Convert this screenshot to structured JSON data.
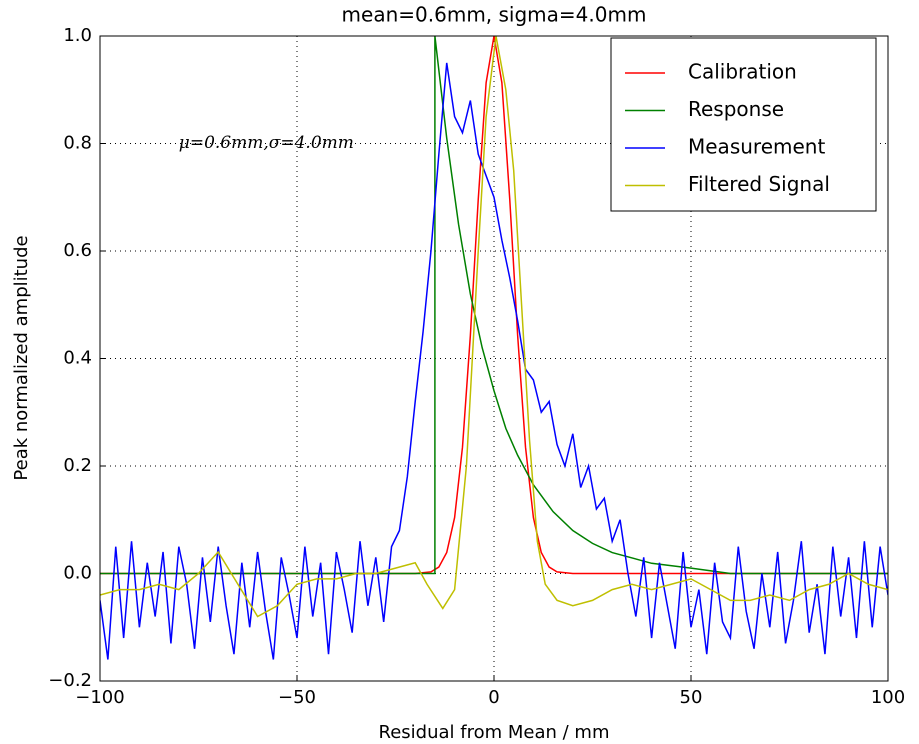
{
  "chart_data": {
    "type": "line",
    "title": "mean=0.6mm, sigma=4.0mm",
    "x_label": "Residual from Mean / mm",
    "y_label": "Peak normalized amplitude",
    "annotation": {
      "text": "μ=0.6mm,σ=4.0mm",
      "x": -80,
      "y": 0.8
    },
    "xlim": [
      -100,
      100
    ],
    "ylim": [
      -0.2,
      1.0
    ],
    "xticks": [
      {
        "value": -100,
        "label": "−100"
      },
      {
        "value": -50,
        "label": "−50"
      },
      0,
      50,
      100
    ],
    "yticks": [
      {
        "value": -0.2,
        "label": "−0.2"
      },
      {
        "value": 0,
        "label": "0.0"
      },
      0.2,
      0.4,
      0.6,
      0.8,
      {
        "value": 1,
        "label": "1.0"
      }
    ],
    "grid": true,
    "legend": "upper right",
    "series": [
      {
        "name": "Calibration",
        "color": "#ff0000",
        "x": [
          -100,
          -20,
          -16,
          -14,
          -12,
          -10,
          -8,
          -6,
          -4,
          -2,
          0,
          2,
          4,
          6,
          8,
          10,
          12,
          14,
          16,
          20,
          100
        ],
        "values": [
          0,
          0,
          0.003,
          0.012,
          0.039,
          0.104,
          0.235,
          0.443,
          0.696,
          0.913,
          1,
          0.913,
          0.696,
          0.443,
          0.235,
          0.104,
          0.039,
          0.012,
          0.003,
          0,
          0
        ]
      },
      {
        "name": "Response",
        "color": "#008000",
        "x": [
          -100,
          -15,
          -15,
          -12,
          -9,
          -6,
          -3,
          0,
          3,
          6,
          10,
          15,
          20,
          25,
          30,
          40,
          50,
          60,
          100
        ],
        "values": [
          0,
          0,
          1,
          0.81,
          0.65,
          0.52,
          0.42,
          0.34,
          0.27,
          0.22,
          0.165,
          0.115,
          0.08,
          0.056,
          0.039,
          0.019,
          0.01,
          0,
          0
        ]
      },
      {
        "name": "Measurement",
        "color": "#0000ff",
        "x": [
          -100,
          -98,
          -96,
          -94,
          -92,
          -90,
          -88,
          -86,
          -84,
          -82,
          -80,
          -78,
          -76,
          -74,
          -72,
          -70,
          -68,
          -66,
          -64,
          -62,
          -60,
          -58,
          -56,
          -54,
          -52,
          -50,
          -48,
          -46,
          -44,
          -42,
          -40,
          -38,
          -36,
          -34,
          -32,
          -30,
          -28,
          -26,
          -24,
          -22,
          -20,
          -18,
          -16,
          -14,
          -12,
          -10,
          -8,
          -6,
          -4,
          -2,
          0,
          2,
          4,
          6,
          8,
          10,
          12,
          14,
          16,
          18,
          20,
          22,
          24,
          26,
          28,
          30,
          32,
          34,
          36,
          38,
          40,
          42,
          44,
          46,
          48,
          50,
          52,
          54,
          56,
          58,
          60,
          62,
          64,
          66,
          68,
          70,
          72,
          74,
          76,
          78,
          80,
          82,
          84,
          86,
          88,
          90,
          92,
          94,
          96,
          98,
          100
        ],
        "values": [
          -0.05,
          -0.16,
          0.05,
          -0.12,
          0.06,
          -0.1,
          0.02,
          -0.08,
          0.04,
          -0.13,
          0.05,
          -0.02,
          -0.14,
          0.03,
          -0.09,
          0.05,
          -0.06,
          -0.15,
          0.02,
          -0.1,
          0.04,
          -0.07,
          -0.16,
          0.03,
          -0.04,
          -0.12,
          0.05,
          -0.08,
          0.02,
          -0.15,
          0.04,
          -0.03,
          -0.11,
          0.06,
          -0.06,
          0.03,
          -0.09,
          0.05,
          0.08,
          0.18,
          0.32,
          0.45,
          0.6,
          0.78,
          0.95,
          0.85,
          0.82,
          0.88,
          0.78,
          0.74,
          0.7,
          0.62,
          0.55,
          0.47,
          0.38,
          0.36,
          0.3,
          0.32,
          0.24,
          0.2,
          0.26,
          0.16,
          0.2,
          0.12,
          0.14,
          0.06,
          0.1,
          0,
          -0.08,
          0.03,
          -0.12,
          0.02,
          -0.06,
          -0.14,
          0.04,
          -0.1,
          -0.03,
          -0.15,
          0.02,
          -0.09,
          -0.12,
          0.05,
          -0.07,
          -0.14,
          0,
          -0.1,
          0.04,
          -0.13,
          -0.05,
          0.06,
          -0.11,
          -0.02,
          -0.15,
          0.05,
          -0.08,
          0.03,
          -0.12,
          0.06,
          -0.1,
          0.05,
          -0.04
        ]
      },
      {
        "name": "Filtered Signal",
        "color": "#bfbf00",
        "x": [
          -100,
          -95,
          -90,
          -85,
          -80,
          -75,
          -70,
          -65,
          -60,
          -55,
          -50,
          -45,
          -40,
          -35,
          -30,
          -25,
          -20,
          -17,
          -13,
          -10,
          -7,
          -4,
          -2,
          0.5,
          3,
          5,
          7,
          9,
          11,
          13,
          16,
          20,
          25,
          30,
          35,
          40,
          45,
          50,
          55,
          60,
          65,
          70,
          75,
          80,
          85,
          90,
          95,
          100
        ],
        "values": [
          -0.04,
          -0.03,
          -0.03,
          -0.02,
          -0.03,
          0,
          0.04,
          -0.02,
          -0.08,
          -0.06,
          -0.02,
          -0.01,
          -0.01,
          0,
          0,
          0.01,
          0.02,
          -0.02,
          -0.065,
          -0.03,
          0.2,
          0.6,
          0.85,
          1,
          0.9,
          0.75,
          0.5,
          0.25,
          0.06,
          -0.02,
          -0.05,
          -0.06,
          -0.05,
          -0.03,
          -0.02,
          -0.03,
          -0.02,
          -0.01,
          -0.03,
          -0.05,
          -0.05,
          -0.04,
          -0.05,
          -0.03,
          -0.02,
          0,
          -0.02,
          -0.03
        ]
      }
    ]
  }
}
